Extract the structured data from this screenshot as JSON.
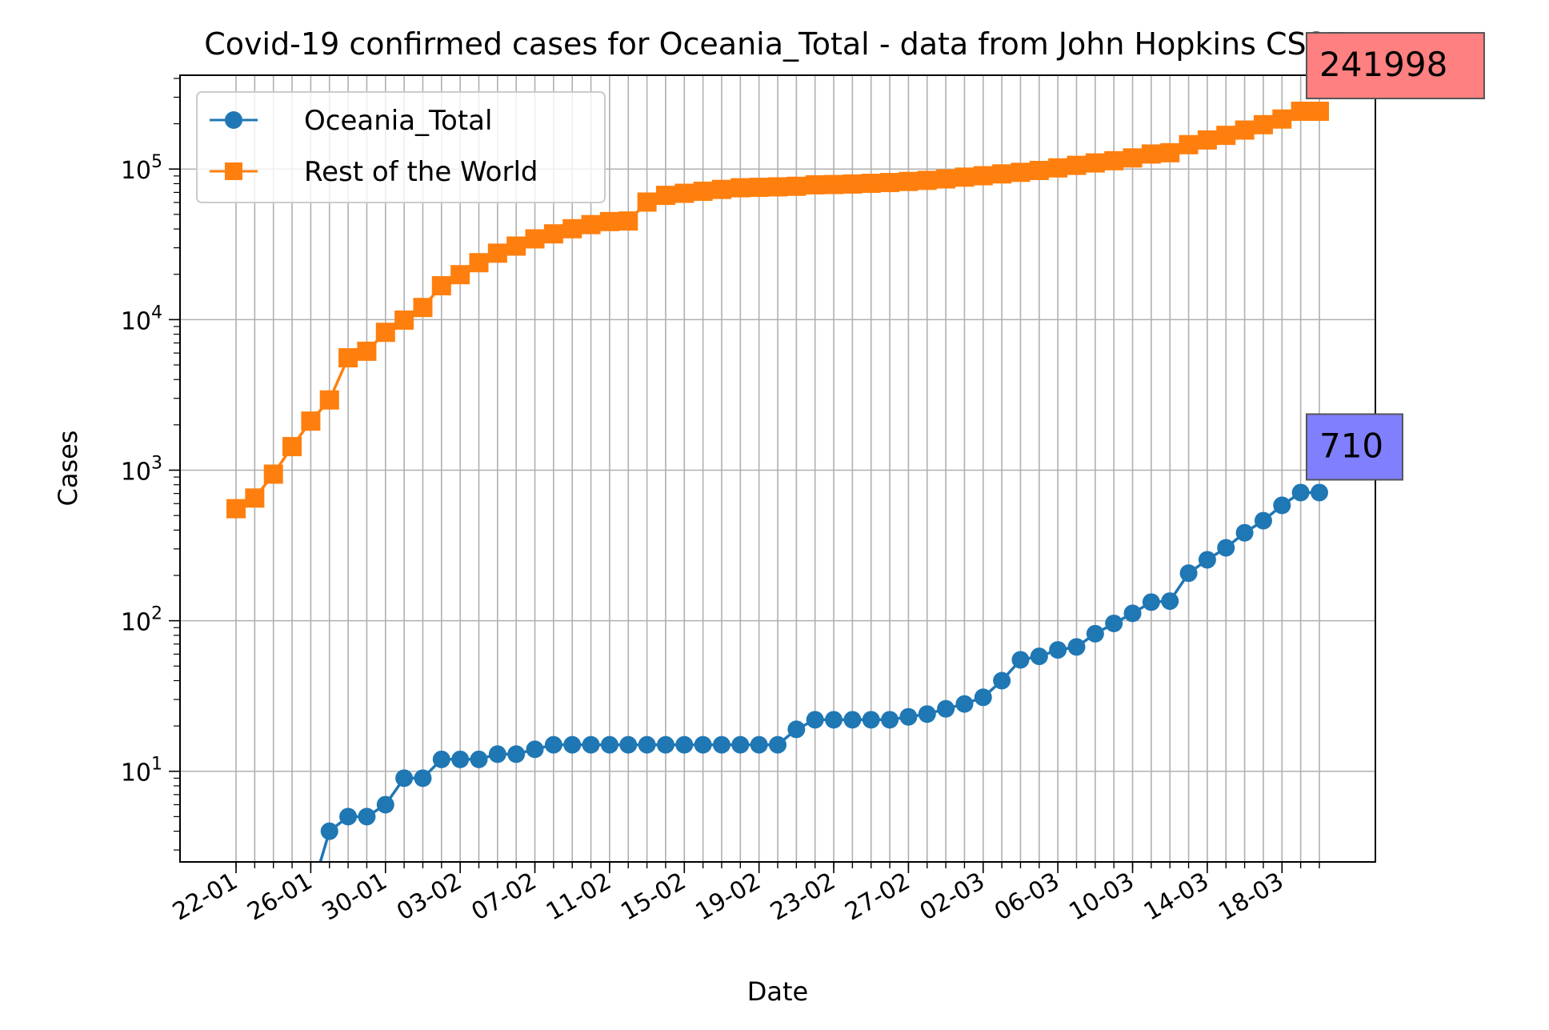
{
  "chart_data": {
    "type": "line",
    "title": "Covid-19 confirmed cases for Oceania_Total - data from John Hopkins CSSE",
    "xlabel": "Date",
    "ylabel": "Cases",
    "yscale": "log",
    "ylim": [
      2.5,
      420000
    ],
    "xlim": [
      "2020-01-19",
      "2020-03-23"
    ],
    "grid": true,
    "legend_position": "upper-left",
    "x_tick_labels": [
      "22-01",
      "26-01",
      "30-01",
      "03-02",
      "07-02",
      "11-02",
      "15-02",
      "19-02",
      "23-02",
      "27-02",
      "02-03",
      "06-03",
      "10-03",
      "14-03",
      "18-03"
    ],
    "x_tick_dates": [
      "2020-01-22",
      "2020-01-26",
      "2020-01-30",
      "2020-02-03",
      "2020-02-07",
      "2020-02-11",
      "2020-02-15",
      "2020-02-19",
      "2020-02-23",
      "2020-02-27",
      "2020-03-02",
      "2020-03-06",
      "2020-03-10",
      "2020-03-14",
      "2020-03-18"
    ],
    "y_tick_labels": [
      {
        "value": 10,
        "base": "10",
        "exp": "1"
      },
      {
        "value": 100,
        "base": "10",
        "exp": "2"
      },
      {
        "value": 1000,
        "base": "10",
        "exp": "3"
      },
      {
        "value": 10000,
        "base": "10",
        "exp": "4"
      },
      {
        "value": 100000,
        "base": "10",
        "exp": "5"
      }
    ],
    "dates": [
      "2020-01-22",
      "2020-01-23",
      "2020-01-24",
      "2020-01-25",
      "2020-01-26",
      "2020-01-27",
      "2020-01-28",
      "2020-01-29",
      "2020-01-30",
      "2020-01-31",
      "2020-02-01",
      "2020-02-02",
      "2020-02-03",
      "2020-02-04",
      "2020-02-05",
      "2020-02-06",
      "2020-02-07",
      "2020-02-08",
      "2020-02-09",
      "2020-02-10",
      "2020-02-11",
      "2020-02-12",
      "2020-02-13",
      "2020-02-14",
      "2020-02-15",
      "2020-02-16",
      "2020-02-17",
      "2020-02-18",
      "2020-02-19",
      "2020-02-20",
      "2020-02-21",
      "2020-02-22",
      "2020-02-23",
      "2020-02-24",
      "2020-02-25",
      "2020-02-26",
      "2020-02-27",
      "2020-02-28",
      "2020-02-29",
      "2020-03-01",
      "2020-03-02",
      "2020-03-03",
      "2020-03-04",
      "2020-03-05",
      "2020-03-06",
      "2020-03-07",
      "2020-03-08",
      "2020-03-09",
      "2020-03-10",
      "2020-03-11",
      "2020-03-12",
      "2020-03-13",
      "2020-03-14",
      "2020-03-15",
      "2020-03-16",
      "2020-03-17",
      "2020-03-18",
      "2020-03-19",
      "2020-03-20"
    ],
    "series": [
      {
        "name": "Oceania_Total",
        "color": "#1f77b4",
        "marker": "circle",
        "values": [
          0,
          0,
          0,
          0,
          0,
          4,
          5,
          5,
          6,
          9,
          9,
          12,
          12,
          12,
          13,
          13,
          14,
          15,
          15,
          15,
          15,
          15,
          15,
          15,
          15,
          15,
          15,
          15,
          15,
          15,
          19,
          22,
          22,
          22,
          22,
          22,
          23,
          24,
          26,
          28,
          31,
          40,
          55,
          58,
          64,
          67,
          82,
          96,
          112,
          133,
          135,
          207,
          254,
          305,
          384,
          462,
          584,
          710,
          710
        ],
        "last_label": "710",
        "label_color": "#8080ff"
      },
      {
        "name": "Rest of the World",
        "color": "#ff7f0e",
        "marker": "square",
        "values": [
          555,
          653,
          941,
          1434,
          2118,
          2927,
          5578,
          6166,
          8234,
          9927,
          12038,
          16787,
          19881,
          23892,
          27635,
          30794,
          34391,
          37120,
          40150,
          42762,
          44802,
          45221,
          60368,
          66885,
          69030,
          71224,
          73258,
          75136,
          75639,
          76197,
          76819,
          78572,
          78958,
          79561,
          80406,
          81388,
          82746,
          84112,
          86011,
          88369,
          90306,
          92840,
          95120,
          97886,
          101801,
          105847,
          109821,
          113590,
          118582,
          125865,
          128343,
          145193,
          156097,
          167449,
          181546,
          197142,
          214910,
          241998,
          241998
        ],
        "last_label": "241998",
        "label_color": "#ff8080"
      }
    ]
  }
}
